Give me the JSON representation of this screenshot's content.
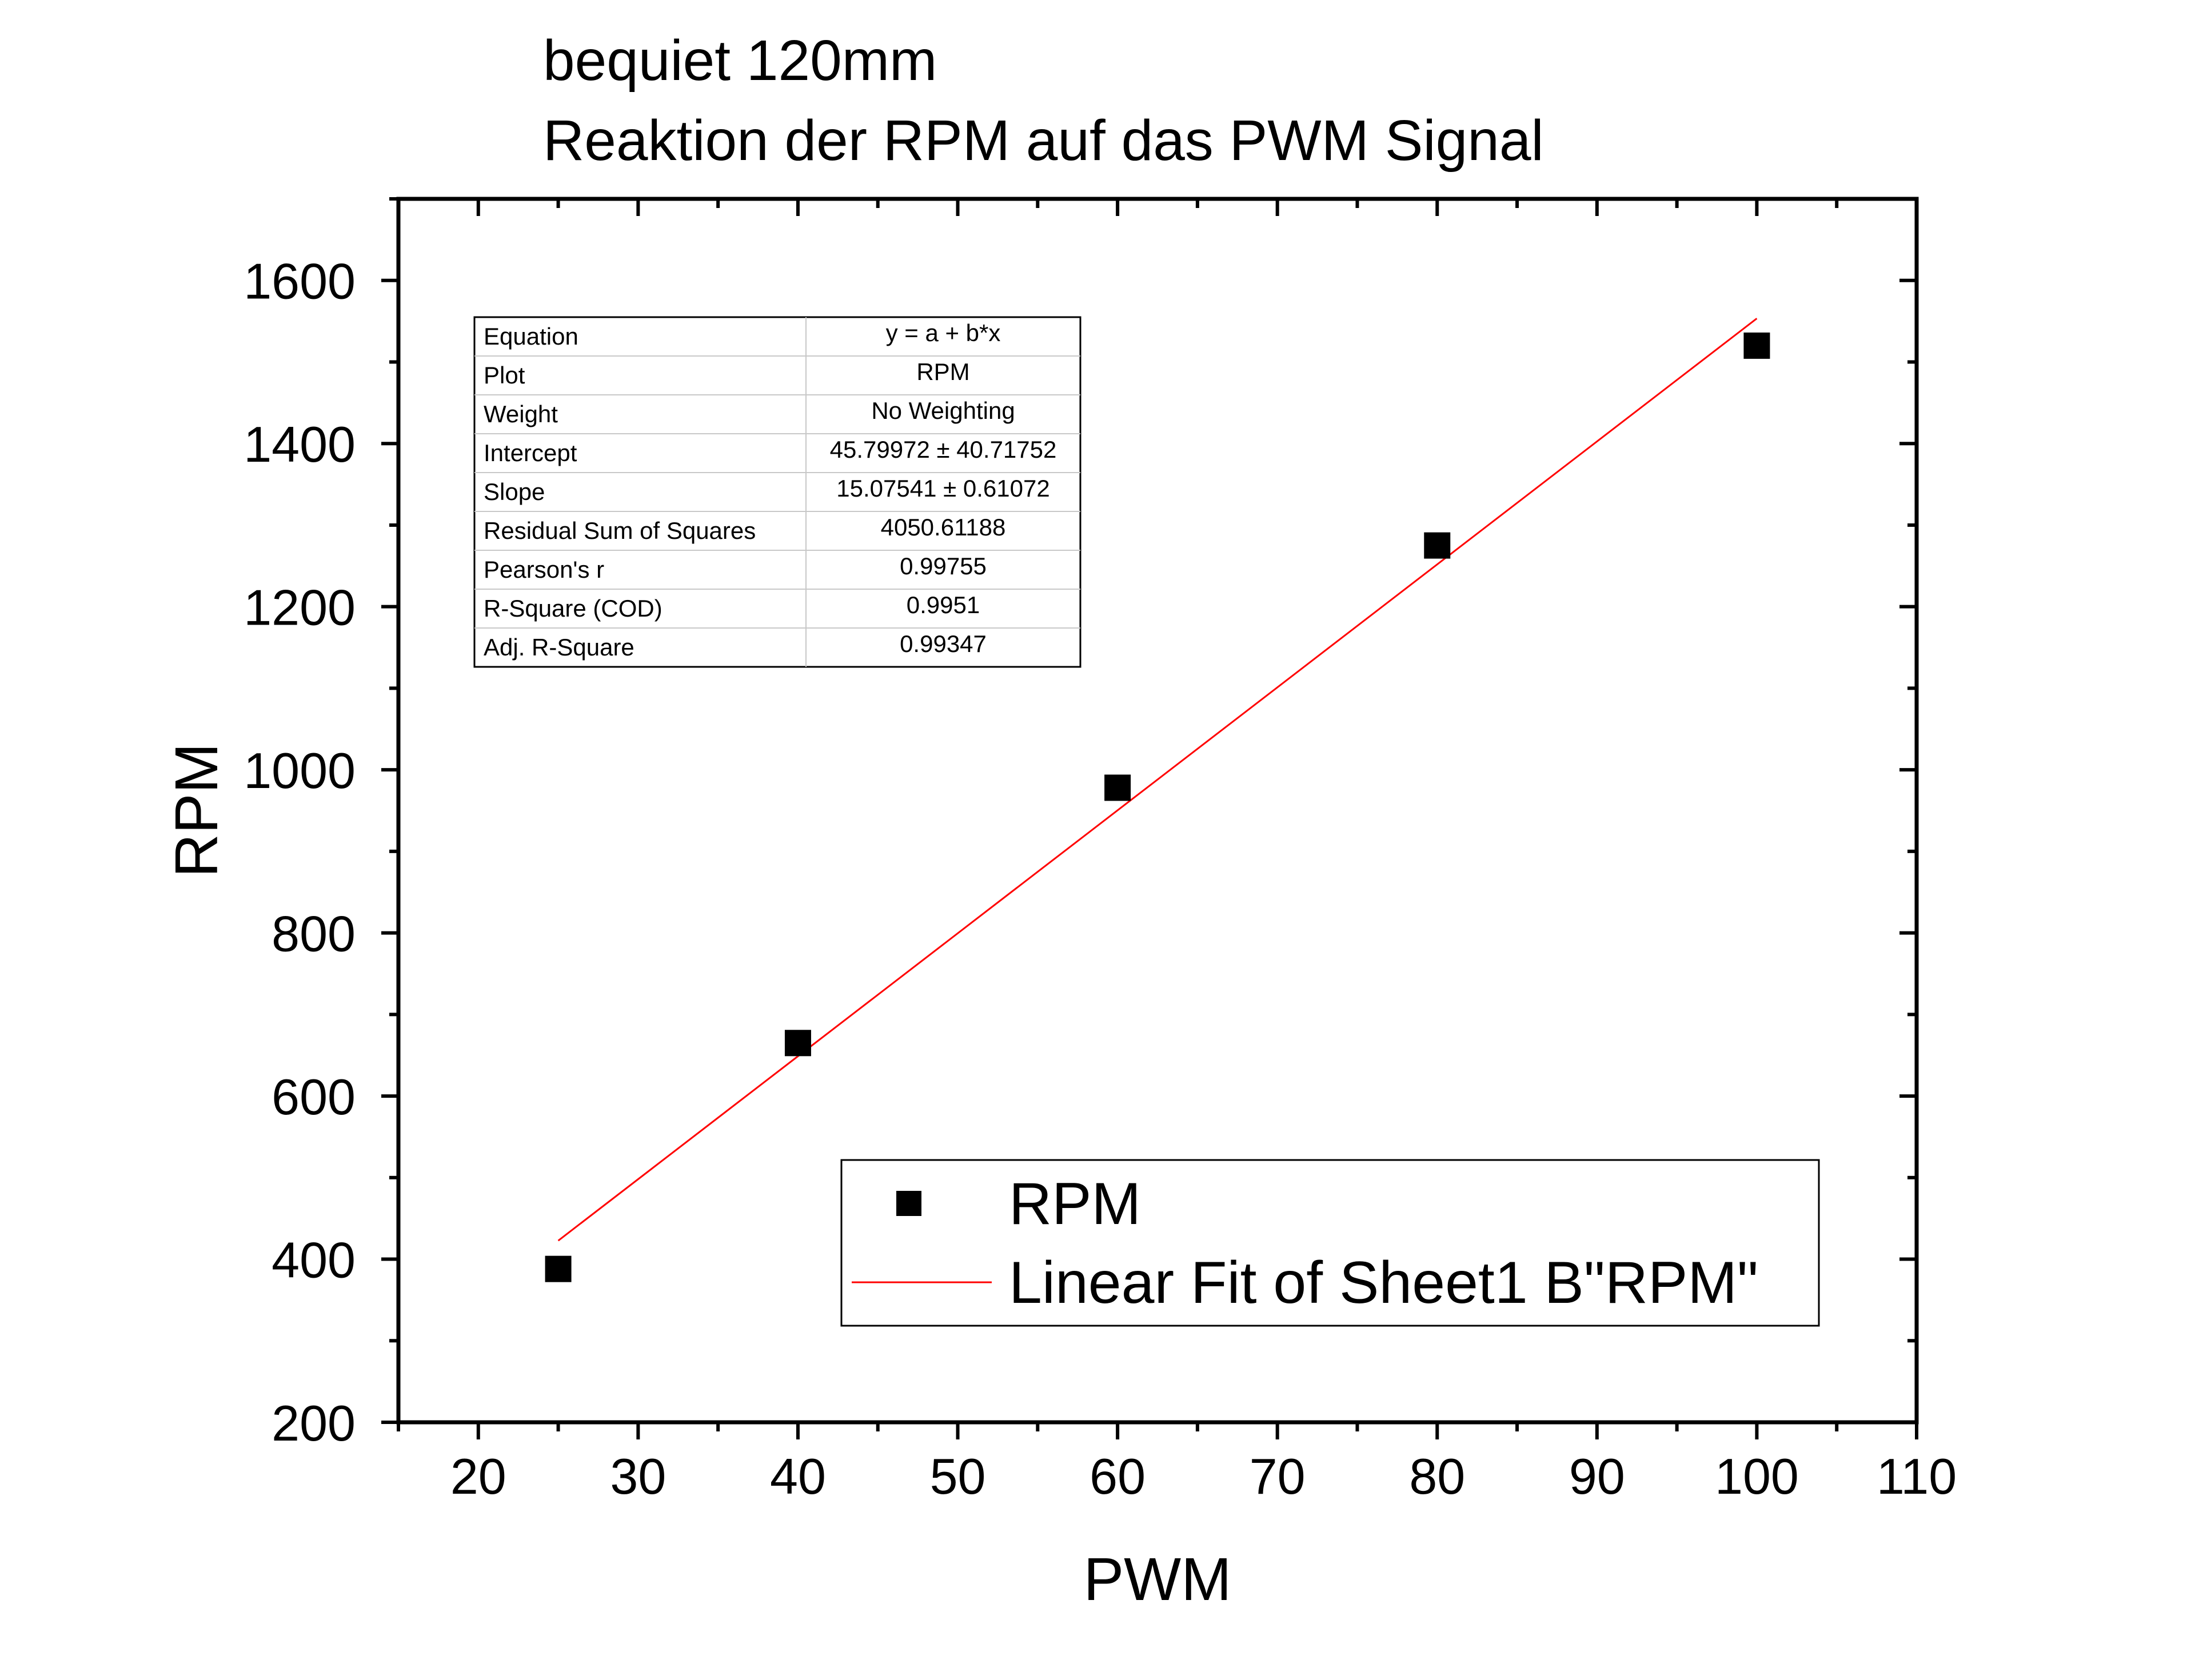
{
  "title_lines": [
    "bequiet 120mm",
    "Reaktion der RPM auf das PWM Signal"
  ],
  "chart_data": {
    "type": "scatter",
    "title": "bequiet 120mm / Reaktion der RPM auf das PWM Signal",
    "xlabel": "PWM",
    "ylabel": "RPM",
    "xlim": [
      15,
      110
    ],
    "ylim": [
      200,
      1700
    ],
    "x_ticks": [
      20,
      30,
      40,
      50,
      60,
      70,
      80,
      90,
      100,
      110
    ],
    "x_minor_step": 5,
    "y_ticks": [
      200,
      400,
      600,
      800,
      1000,
      1200,
      1400,
      1600
    ],
    "y_minor_step": 100,
    "series": [
      {
        "name": "RPM",
        "kind": "scatter",
        "marker": "square",
        "color": "#000000",
        "x": [
          25,
          40,
          60,
          80,
          100
        ],
        "y": [
          388,
          665,
          978,
          1275,
          1520
        ]
      },
      {
        "name": "Linear Fit of Sheet1 B\"RPM\"",
        "kind": "line",
        "color": "#ff0000",
        "intercept": 45.79972,
        "slope": 15.07541,
        "x_range": [
          25,
          100
        ]
      }
    ],
    "legend": {
      "position": "bottom-right",
      "entries": [
        {
          "label": "RPM",
          "symbol": "square",
          "color": "#000000"
        },
        {
          "label": "Linear Fit of Sheet1 B\"RPM\"",
          "symbol": "line",
          "color": "#ff0000"
        }
      ]
    },
    "stats_table": [
      {
        "label": "Equation",
        "value": "y = a + b*x"
      },
      {
        "label": "Plot",
        "value": "RPM"
      },
      {
        "label": "Weight",
        "value": "No Weighting"
      },
      {
        "label": "Intercept",
        "value": "45.79972 ± 40.71752"
      },
      {
        "label": "Slope",
        "value": "15.07541 ± 0.61072"
      },
      {
        "label": "Residual Sum of Squares",
        "value": "4050.61188"
      },
      {
        "label": "Pearson's r",
        "value": "0.99755"
      },
      {
        "label": "R-Square (COD)",
        "value": "0.9951"
      },
      {
        "label": "Adj. R-Square",
        "value": "0.99347"
      }
    ]
  }
}
